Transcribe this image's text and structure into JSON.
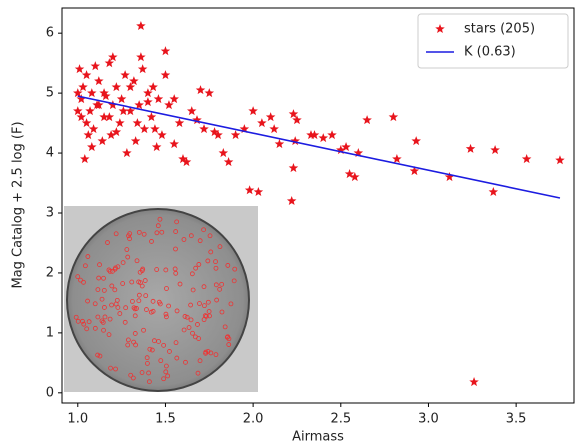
{
  "chart_data": {
    "type": "scatter",
    "xlabel": "Airmass",
    "ylabel": "Mag Catalog + 2.5 log (F)",
    "xlim": [
      0.91,
      3.83
    ],
    "ylim": [
      -0.17,
      6.42
    ],
    "xticks": [
      {
        "value": 1,
        "label": "1.0"
      },
      {
        "value": 1.5,
        "label": "1.5"
      },
      {
        "value": 2,
        "label": "2.0"
      },
      {
        "value": 2.5,
        "label": "2.5"
      },
      {
        "value": 3,
        "label": "3.0"
      },
      {
        "value": 3.5,
        "label": "3.5"
      }
    ],
    "yticks": [
      0,
      1,
      2,
      3,
      4,
      5,
      6
    ],
    "grid": false,
    "legend": "upper right",
    "series": [
      {
        "name": "stars (205)",
        "type": "scatter",
        "marker": "star",
        "color": "#e8141c",
        "x": [
          1.36,
          1.36,
          1.2,
          1.5,
          1.98,
          2.03,
          2.22,
          3.26,
          3.75,
          3.56,
          3.38,
          3.37,
          3.24,
          3.12,
          2.93,
          2.92,
          2.8,
          2.82,
          2.65,
          2.6,
          2.58,
          2.55,
          2.53,
          2.45,
          2.4,
          2.35,
          2.33,
          2.25,
          2.23,
          2.23,
          2.24,
          2.15,
          2.1,
          2.05,
          2.0,
          1.95,
          1.9,
          1.86,
          1.8,
          1.75,
          1.72,
          1.7,
          1.65,
          1.62,
          1.6,
          1.58,
          1.55,
          1.52,
          1.5,
          1.48,
          1.46,
          1.45,
          1.43,
          1.42,
          1.4,
          1.38,
          1.37,
          1.35,
          1.33,
          1.32,
          1.3,
          1.28,
          1.27,
          1.25,
          1.24,
          1.22,
          1.2,
          1.19,
          1.18,
          1.16,
          1.15,
          1.14,
          1.12,
          1.11,
          1.1,
          1.09,
          1.08,
          1.07,
          1.06,
          1.05,
          1.04,
          1.03,
          1.02,
          1.02,
          1.01,
          1.0,
          1.0,
          1.05,
          1.08,
          1.12,
          1.15,
          1.18,
          1.22,
          1.26,
          1.3,
          1.34,
          1.4,
          1.44,
          1.55,
          1.68,
          1.78,
          1.83,
          2.12,
          2.5
        ],
        "y": [
          6.12,
          5.6,
          5.6,
          5.7,
          3.38,
          3.35,
          3.2,
          0.18,
          3.88,
          3.9,
          4.05,
          3.35,
          4.07,
          3.6,
          4.2,
          3.7,
          4.6,
          3.9,
          4.55,
          4.0,
          3.6,
          3.65,
          4.1,
          4.3,
          4.25,
          4.3,
          4.3,
          4.55,
          4.65,
          3.75,
          4.2,
          4.15,
          4.6,
          4.5,
          4.7,
          4.4,
          4.3,
          3.85,
          4.3,
          5.0,
          4.4,
          5.05,
          4.7,
          3.85,
          3.9,
          4.5,
          4.15,
          4.8,
          5.3,
          4.3,
          4.9,
          4.1,
          5.1,
          4.6,
          5.0,
          4.4,
          5.4,
          4.8,
          4.2,
          5.2,
          4.7,
          4.0,
          5.3,
          4.9,
          4.5,
          5.1,
          4.8,
          4.3,
          5.5,
          4.95,
          4.6,
          4.2,
          5.2,
          4.8,
          5.45,
          4.4,
          5.0,
          4.7,
          4.3,
          5.3,
          3.9,
          5.1,
          4.6,
          4.9,
          5.4,
          4.7,
          5.0,
          4.5,
          4.1,
          4.8,
          5.0,
          4.6,
          4.35,
          4.7,
          5.1,
          4.5,
          4.85,
          4.4,
          4.9,
          4.55,
          4.35,
          4.0,
          4.4,
          4.05
        ]
      },
      {
        "name": "K (0.63)",
        "type": "line",
        "color": "#1c1ce0",
        "x": [
          1.0,
          3.75
        ],
        "y": [
          4.95,
          3.25
        ]
      }
    ]
  }
}
